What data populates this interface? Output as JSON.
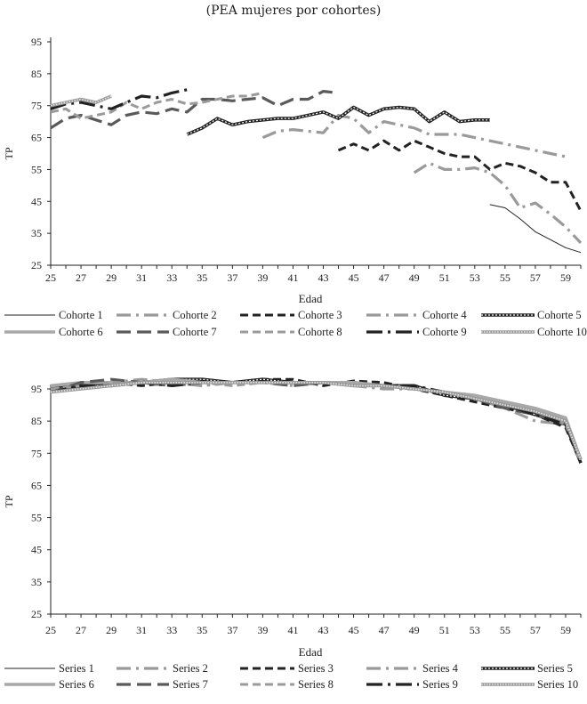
{
  "figure_title": "(PEA mujeres por cohortes)",
  "chart_data": [
    {
      "type": "line",
      "title": "(PEA mujeres por cohortes)",
      "xlabel": "Edad",
      "ylabel": "TP",
      "xlim": [
        25,
        60
      ],
      "ylim": [
        25,
        95
      ],
      "x_ticks": [
        "25",
        "27",
        "29",
        "31",
        "33",
        "35",
        "37",
        "39",
        "41",
        "43",
        "45",
        "47",
        "49",
        "51",
        "53",
        "55",
        "57",
        "59"
      ],
      "y_ticks": [
        "25",
        "35",
        "45",
        "55",
        "65",
        "75",
        "85",
        "95"
      ],
      "legend": "bottom",
      "series": [
        {
          "name": "Cohorte 1",
          "style": "thin-solid",
          "color": "#222222",
          "x": [
            54,
            55,
            56,
            57,
            58,
            59,
            60
          ],
          "values": [
            44,
            43,
            39.5,
            35.5,
            33,
            30.5,
            29
          ]
        },
        {
          "name": "Cohorte 2",
          "style": "gray-dashdot",
          "color": "#9a9a9a",
          "x": [
            49,
            50,
            51,
            52,
            53,
            54,
            55,
            56,
            57,
            58,
            59,
            60
          ],
          "values": [
            54,
            57,
            55,
            55,
            55.5,
            54,
            50,
            43,
            44.5,
            41,
            37,
            32
          ]
        },
        {
          "name": "Cohorte 3",
          "style": "black-dashed",
          "color": "#222222",
          "x": [
            44,
            45,
            46,
            47,
            48,
            49,
            50,
            51,
            52,
            53,
            54,
            55,
            56,
            57,
            58,
            59,
            60
          ],
          "values": [
            61,
            63,
            61,
            64,
            61,
            64,
            62,
            60,
            59,
            59,
            55,
            57,
            56,
            54,
            51,
            51,
            42
          ]
        },
        {
          "name": "Cohorte 4",
          "style": "gray-dashdot",
          "color": "#9a9a9a",
          "x": [
            39,
            40,
            41,
            42,
            43,
            44,
            45,
            46,
            47,
            48,
            49,
            50,
            51,
            52,
            53,
            54,
            55,
            56,
            57,
            58,
            59
          ],
          "values": [
            65,
            67,
            67.5,
            67,
            66.5,
            72,
            71,
            66.5,
            70,
            69,
            68,
            66,
            66,
            66,
            65,
            64,
            63,
            62,
            61,
            60,
            59
          ]
        },
        {
          "name": "Cohorte 5",
          "style": "double-dotted",
          "color": "#222222",
          "x": [
            34,
            35,
            36,
            37,
            38,
            39,
            40,
            41,
            42,
            43,
            44,
            45,
            46,
            47,
            48,
            49,
            50,
            51,
            52,
            53,
            54
          ],
          "values": [
            66,
            68,
            71,
            69,
            70,
            70.5,
            71,
            71,
            72,
            73,
            71,
            74.5,
            72,
            74,
            74.5,
            74,
            70,
            73,
            70,
            70.5,
            70.5
          ]
        },
        {
          "name": "Cohorte 6",
          "style": "gray-thick",
          "color": "#a8a8a8",
          "x": [],
          "values": []
        },
        {
          "name": "Cohorte 7",
          "style": "darkgray-dashed",
          "color": "#5a5a5a",
          "x": [
            25,
            26,
            27,
            28,
            29,
            30,
            31,
            32,
            33,
            34,
            35,
            36,
            37,
            38,
            39,
            40,
            41,
            42,
            43,
            44
          ],
          "values": [
            68,
            71,
            72,
            70.5,
            69,
            72,
            73,
            72.5,
            74,
            73,
            77,
            77,
            76.5,
            77,
            77.5,
            75,
            77,
            77,
            79.5,
            79
          ]
        },
        {
          "name": "Cohorte 8",
          "style": "gray-dashed",
          "color": "#9a9a9a",
          "x": [
            25,
            26,
            27,
            28,
            29,
            30,
            31,
            32,
            33,
            34,
            35,
            36,
            37,
            38,
            39
          ],
          "values": [
            73,
            74,
            71,
            72,
            73,
            76,
            74,
            76,
            77,
            75.5,
            76,
            77,
            78,
            78,
            79
          ]
        },
        {
          "name": "Cohorte 9",
          "style": "black-dashdot",
          "color": "#222222",
          "x": [
            25,
            26,
            27,
            28,
            29,
            30,
            31,
            32,
            33,
            34
          ],
          "values": [
            74,
            75.5,
            76,
            75,
            74,
            76,
            78,
            77.5,
            79,
            80
          ]
        },
        {
          "name": "Cohorte 10",
          "style": "hatched",
          "color": "#888888",
          "x": [
            25,
            26,
            27,
            28,
            29
          ],
          "values": [
            75,
            76,
            77,
            76,
            78
          ]
        }
      ]
    },
    {
      "type": "line",
      "title": "",
      "xlabel": "Edad",
      "ylabel": "TP",
      "xlim": [
        25,
        60
      ],
      "ylim": [
        25,
        95
      ],
      "x_ticks": [
        "25",
        "27",
        "29",
        "31",
        "33",
        "35",
        "37",
        "39",
        "41",
        "43",
        "45",
        "47",
        "49",
        "51",
        "53",
        "55",
        "57",
        "59"
      ],
      "y_ticks": [
        "25",
        "35",
        "45",
        "55",
        "65",
        "75",
        "85",
        "95"
      ],
      "legend": "bottom",
      "series": [
        {
          "name": "Series 1",
          "style": "thin-solid",
          "color": "#222222",
          "x": [
            25,
            27,
            29,
            31,
            33,
            35,
            37,
            39,
            41,
            43,
            45,
            47,
            49,
            51,
            53,
            55,
            57,
            59,
            60
          ],
          "values": [
            95,
            96,
            97,
            97,
            97,
            97,
            97,
            97,
            97,
            97,
            96.5,
            96,
            95,
            93.5,
            92,
            90,
            88,
            84,
            72
          ]
        },
        {
          "name": "Series 2",
          "style": "gray-dashdot",
          "color": "#9a9a9a",
          "x": [
            25,
            27,
            29,
            31,
            33,
            35,
            37,
            39,
            41,
            43,
            45,
            47,
            49,
            51,
            53,
            55,
            57,
            59,
            60
          ],
          "values": [
            96,
            96,
            97,
            98,
            97,
            96,
            97,
            97,
            96,
            97,
            96,
            95.5,
            95,
            94,
            92,
            89,
            85,
            84,
            72
          ]
        },
        {
          "name": "Series 3",
          "style": "black-dashed",
          "color": "#222222",
          "x": [
            25,
            27,
            29,
            31,
            33,
            35,
            37,
            39,
            41,
            43,
            45,
            47,
            49,
            51,
            53,
            55,
            57,
            59,
            60
          ],
          "values": [
            94,
            96,
            97,
            96,
            97,
            98,
            97,
            98,
            98,
            96,
            97.5,
            97,
            95,
            93,
            91,
            89,
            87,
            83,
            72
          ]
        },
        {
          "name": "Series 4",
          "style": "gray-dashdot",
          "color": "#9a9a9a",
          "x": [
            25,
            27,
            29,
            31,
            33,
            35,
            37,
            39,
            41,
            43,
            45,
            47,
            49,
            51,
            53,
            55,
            57,
            59,
            60
          ],
          "values": [
            95,
            97,
            96,
            97,
            97,
            96,
            97,
            97,
            97,
            97,
            96,
            95,
            95,
            94,
            93,
            90,
            89,
            85,
            73
          ]
        },
        {
          "name": "Series 5",
          "style": "double-dotted",
          "color": "#222222",
          "x": [
            25,
            27,
            29,
            31,
            33,
            35,
            37,
            39,
            41,
            43,
            45,
            47,
            49,
            51,
            53,
            55,
            57,
            59,
            60
          ],
          "values": [
            95,
            96,
            96,
            97,
            98,
            98,
            97,
            98,
            97,
            97,
            97,
            96,
            96,
            93,
            92,
            90,
            87,
            84,
            72
          ]
        },
        {
          "name": "Series 6",
          "style": "gray-thick",
          "color": "#a8a8a8",
          "x": [
            25,
            27,
            29,
            31,
            33,
            35,
            37,
            39,
            41,
            43,
            45,
            47,
            49,
            51,
            53,
            55,
            57,
            59,
            60
          ],
          "values": [
            96,
            97,
            97,
            97,
            98,
            97,
            97,
            97,
            97,
            97,
            97,
            96,
            95,
            94,
            93,
            91,
            89,
            86,
            73
          ]
        },
        {
          "name": "Series 7",
          "style": "darkgray-dashed",
          "color": "#5a5a5a",
          "x": [
            25,
            27,
            29,
            31,
            33,
            35,
            37,
            39,
            41,
            43,
            45,
            47,
            49,
            51,
            53,
            55,
            57,
            59,
            60
          ],
          "values": [
            94,
            97,
            98,
            97,
            96,
            97,
            97,
            97,
            96,
            97,
            96,
            96,
            95,
            94,
            92,
            89,
            87,
            84,
            72
          ]
        },
        {
          "name": "Series 8",
          "style": "gray-dashed",
          "color": "#9a9a9a",
          "x": [
            25,
            27,
            29,
            31,
            33,
            35,
            37,
            39,
            41,
            43,
            45,
            47,
            49,
            51,
            53,
            55,
            57,
            59,
            60
          ],
          "values": [
            95,
            96,
            97,
            97,
            97,
            97,
            96,
            97,
            97,
            97,
            96,
            96,
            95,
            94,
            92,
            90,
            88,
            84,
            72
          ]
        },
        {
          "name": "Series 9",
          "style": "black-dashdot",
          "color": "#222222",
          "x": [
            25,
            27,
            29,
            31,
            33,
            35,
            37,
            39,
            41,
            43,
            45,
            47,
            49,
            51,
            53,
            55,
            57,
            59,
            60
          ],
          "values": [
            94,
            96,
            96,
            97,
            96,
            97,
            97,
            97,
            97,
            97,
            96,
            96,
            96,
            94,
            92,
            90,
            87,
            84,
            72
          ]
        },
        {
          "name": "Series 10",
          "style": "hatched",
          "color": "#888888",
          "x": [
            25,
            27,
            29,
            31,
            33,
            35,
            37,
            39,
            41,
            43,
            45,
            47,
            49,
            51,
            53,
            55,
            57,
            59,
            60
          ],
          "values": [
            94,
            95,
            96,
            97,
            97,
            97,
            97,
            97,
            97,
            97,
            96,
            96,
            95,
            94,
            92,
            90,
            88,
            85,
            73
          ]
        }
      ]
    }
  ]
}
